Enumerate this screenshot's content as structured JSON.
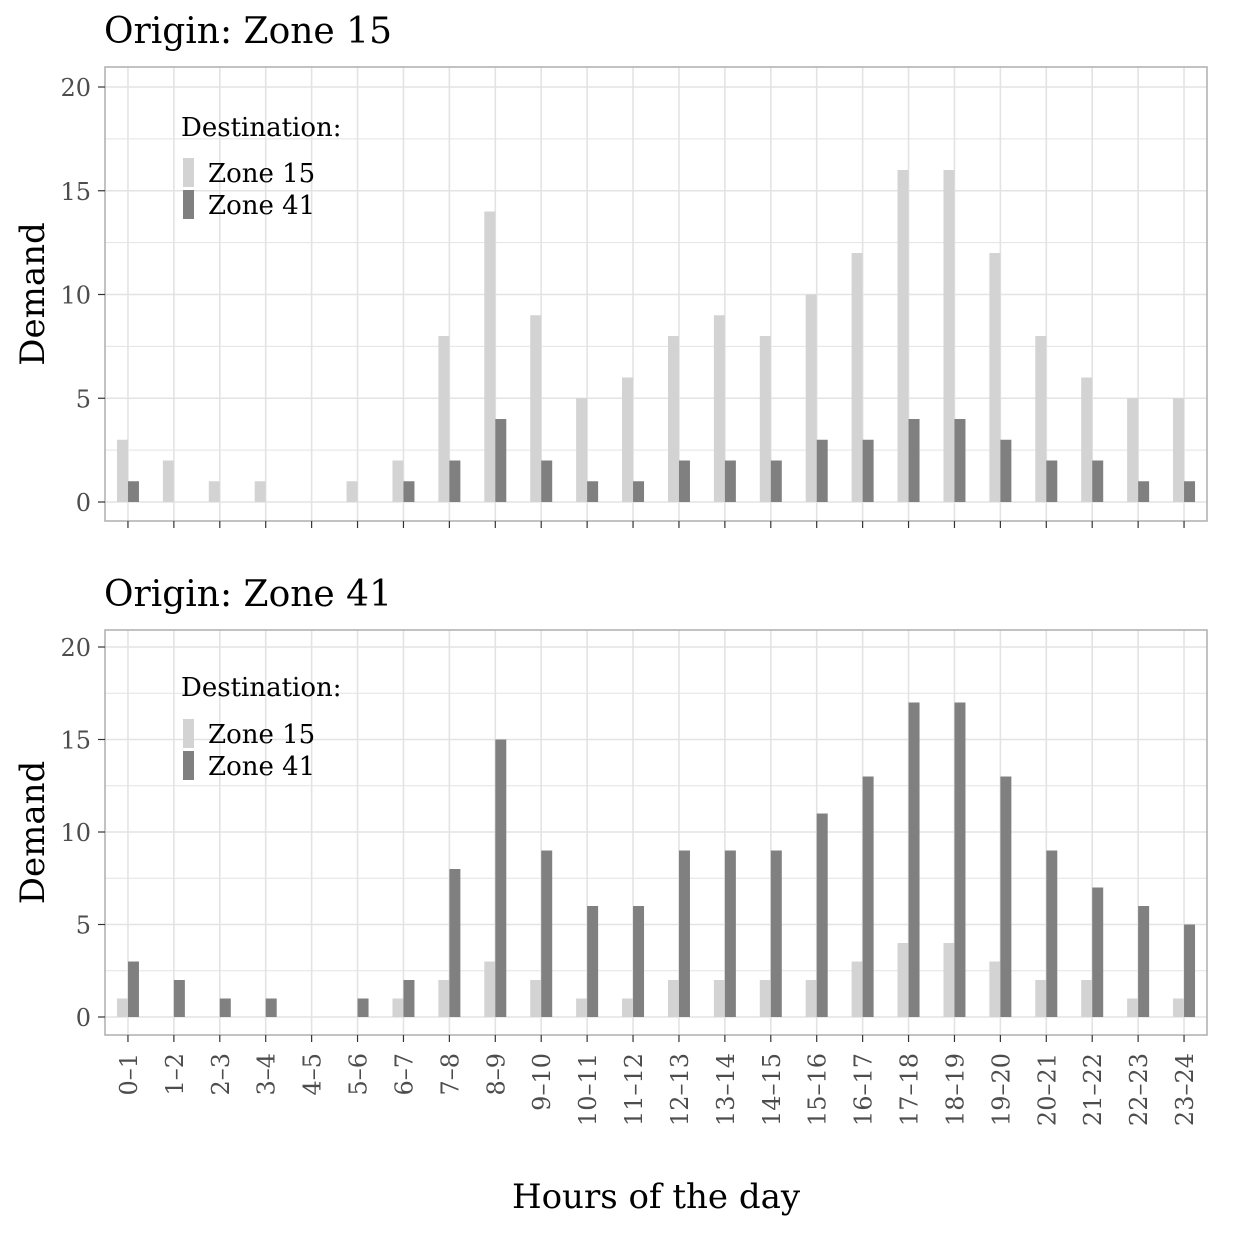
{
  "colors": {
    "zone15": "#d3d3d3",
    "zone41": "#808080",
    "grid": "#e3e3e3",
    "border": "#b3b3b3"
  },
  "axes": {
    "xlabel": "Hours of the day"
  },
  "chart_data": [
    {
      "type": "bar",
      "title": "Origin: Zone 15",
      "xlabel": "Hours of the day",
      "ylabel": "Demand",
      "ylim": [
        0,
        20
      ],
      "yticks": [
        "0",
        "5",
        "10",
        "15",
        "20"
      ],
      "legend": {
        "title": "Destination:",
        "position": "top-left"
      },
      "categories": [
        "0–1",
        "1–2",
        "2–3",
        "3–4",
        "4–5",
        "5–6",
        "6–7",
        "7–8",
        "8–9",
        "9–10",
        "10–11",
        "11–12",
        "12–13",
        "13–14",
        "14–15",
        "15–16",
        "16–17",
        "17–18",
        "18–19",
        "19–20",
        "20–21",
        "21–22",
        "22–23",
        "23–24"
      ],
      "series": [
        {
          "name": "Zone 15",
          "values": [
            3,
            2,
            1,
            1,
            0,
            1,
            2,
            8,
            14,
            9,
            5,
            6,
            8,
            9,
            8,
            10,
            12,
            16,
            16,
            12,
            8,
            6,
            5,
            5
          ]
        },
        {
          "name": "Zone 41",
          "values": [
            1,
            0,
            0,
            0,
            0,
            0,
            1,
            2,
            4,
            2,
            1,
            1,
            2,
            2,
            2,
            3,
            3,
            4,
            4,
            3,
            2,
            2,
            1,
            1
          ]
        }
      ]
    },
    {
      "type": "bar",
      "title": "Origin: Zone 41",
      "xlabel": "Hours of the day",
      "ylabel": "Demand",
      "ylim": [
        0,
        20
      ],
      "yticks": [
        "0",
        "5",
        "10",
        "15",
        "20"
      ],
      "legend": {
        "title": "Destination:",
        "position": "top-left"
      },
      "categories": [
        "0–1",
        "1–2",
        "2–3",
        "3–4",
        "4–5",
        "5–6",
        "6–7",
        "7–8",
        "8–9",
        "9–10",
        "10–11",
        "11–12",
        "12–13",
        "13–14",
        "14–15",
        "15–16",
        "16–17",
        "17–18",
        "18–19",
        "19–20",
        "20–21",
        "21–22",
        "22–23",
        "23–24"
      ],
      "series": [
        {
          "name": "Zone 15",
          "values": [
            1,
            0,
            0,
            0,
            0,
            0,
            1,
            2,
            3,
            2,
            1,
            1,
            2,
            2,
            2,
            2,
            3,
            4,
            4,
            3,
            2,
            2,
            1,
            1
          ]
        },
        {
          "name": "Zone 41",
          "values": [
            3,
            2,
            1,
            1,
            0,
            1,
            2,
            8,
            15,
            9,
            6,
            6,
            9,
            9,
            9,
            11,
            13,
            17,
            17,
            13,
            9,
            7,
            6,
            5
          ]
        }
      ]
    }
  ]
}
